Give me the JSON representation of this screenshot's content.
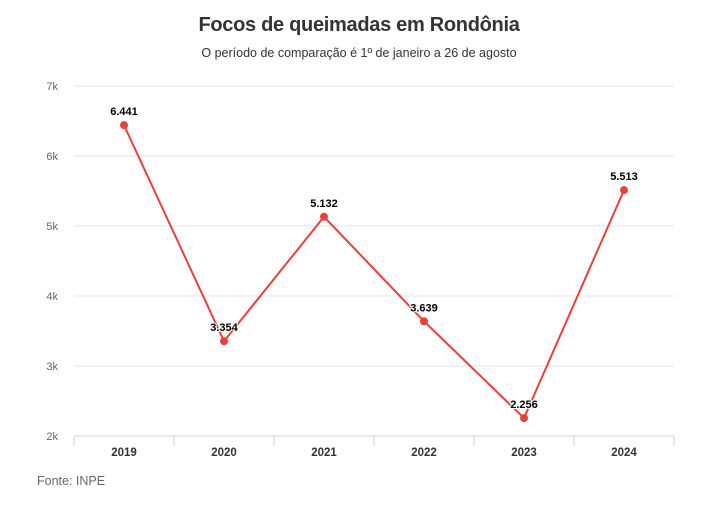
{
  "chart_data": {
    "type": "line",
    "title": "Focos de queimadas em Rondônia",
    "subtitle": "O período de comparação é 1º de janeiro a 26 de agosto",
    "categories": [
      "2019",
      "2020",
      "2021",
      "2022",
      "2023",
      "2024"
    ],
    "values": [
      6441,
      3354,
      5132,
      3639,
      2256,
      5513
    ],
    "data_labels": [
      "6.441",
      "3.354",
      "5.132",
      "3.639",
      "2.256",
      "5.513"
    ],
    "yticks": [
      2000,
      3000,
      4000,
      5000,
      6000,
      7000
    ],
    "ytick_labels": [
      "2k",
      "3k",
      "4k",
      "5k",
      "6k",
      "7k"
    ],
    "ylim": [
      2000,
      7000
    ],
    "xlabel": "",
    "ylabel": "",
    "grid": true,
    "line_color": "#e8413a",
    "source": "Fonte: INPE"
  }
}
